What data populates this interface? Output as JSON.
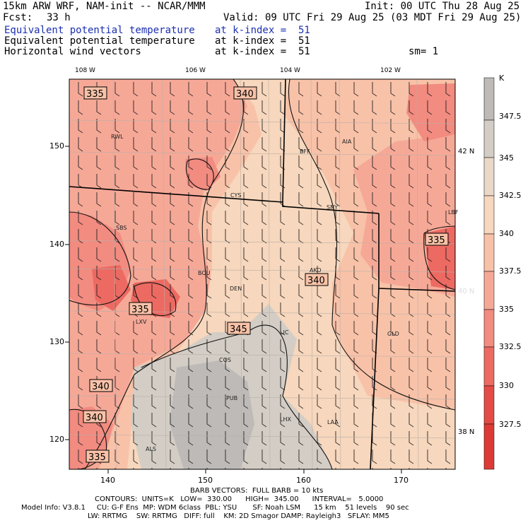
{
  "header": {
    "model": "15km ARW WRF, NAM-init -- NCAR/MMM",
    "init": "Init: 00 UTC Thu 28 Aug 25",
    "fcst_label": "Fcst:",
    "fcst_value": "33 h",
    "valid": "Valid: 09 UTC Fri 29 Aug 25 (03 MDT Fri 29 Aug 25)",
    "fields": [
      {
        "name": "Equivalent potential temperature",
        "level": "at k-index =  51"
      },
      {
        "name": "Equivalent potential temperature",
        "level": "at k-index =  51"
      },
      {
        "name": "Horizontal wind vectors",
        "level": "at k-index =  51"
      }
    ],
    "smooth": "sm= 1"
  },
  "map": {
    "lon_labels": [
      "108 W",
      "106 W",
      "104 W",
      "102 W"
    ],
    "lat_labels": [
      "42 N",
      "40 N",
      "38 N"
    ],
    "x_ticks": [
      "140",
      "150",
      "160",
      "170"
    ],
    "y_ticks": [
      "150",
      "140",
      "130",
      "120"
    ],
    "cities": [
      "RWL",
      "BFF",
      "AIA",
      "CYS",
      "SNY",
      "SBS",
      "BOU",
      "AKO",
      "DEN",
      "LXV",
      "LIC",
      "GLD",
      "COS",
      "PUB",
      "LHX",
      "LAA",
      "ALS",
      "LBF"
    ],
    "contour_labels": [
      "335",
      "340",
      "335",
      "335",
      "340",
      "345",
      "340",
      "340",
      "335"
    ]
  },
  "colorbar": {
    "unit": "K",
    "labels": [
      "347.5",
      "345",
      "342.5",
      "340",
      "337.5",
      "335",
      "332.5",
      "330",
      "327.5"
    ],
    "colors": [
      "#bdbab8",
      "#d3cdc5",
      "#ead8c8",
      "#f7d7bd",
      "#f8c2a8",
      "#f6a897",
      "#f28b80",
      "#ec6a62",
      "#e54b45",
      "#dd3a35"
    ]
  },
  "footer": {
    "barb": "BARB VECTORS:  FULL BARB = 10 kts",
    "contours": "CONTOURS:  UNITS=K   LOW=  330.00      HIGH=  345.00      INTERVAL=   5.0000",
    "model_info_1": "Model Info: V3.8.1     CU: G-F Ens  MP: WDM 6class  PBL: YSU       SF: Noah LSM      15 km    51 levels    90 sec",
    "model_info_2": "LW: RRTMG    SW: RRTMG   DIFF: full    KM: 2D Smagor DAMP: Rayleigh3   SFLAY: MM5"
  }
}
